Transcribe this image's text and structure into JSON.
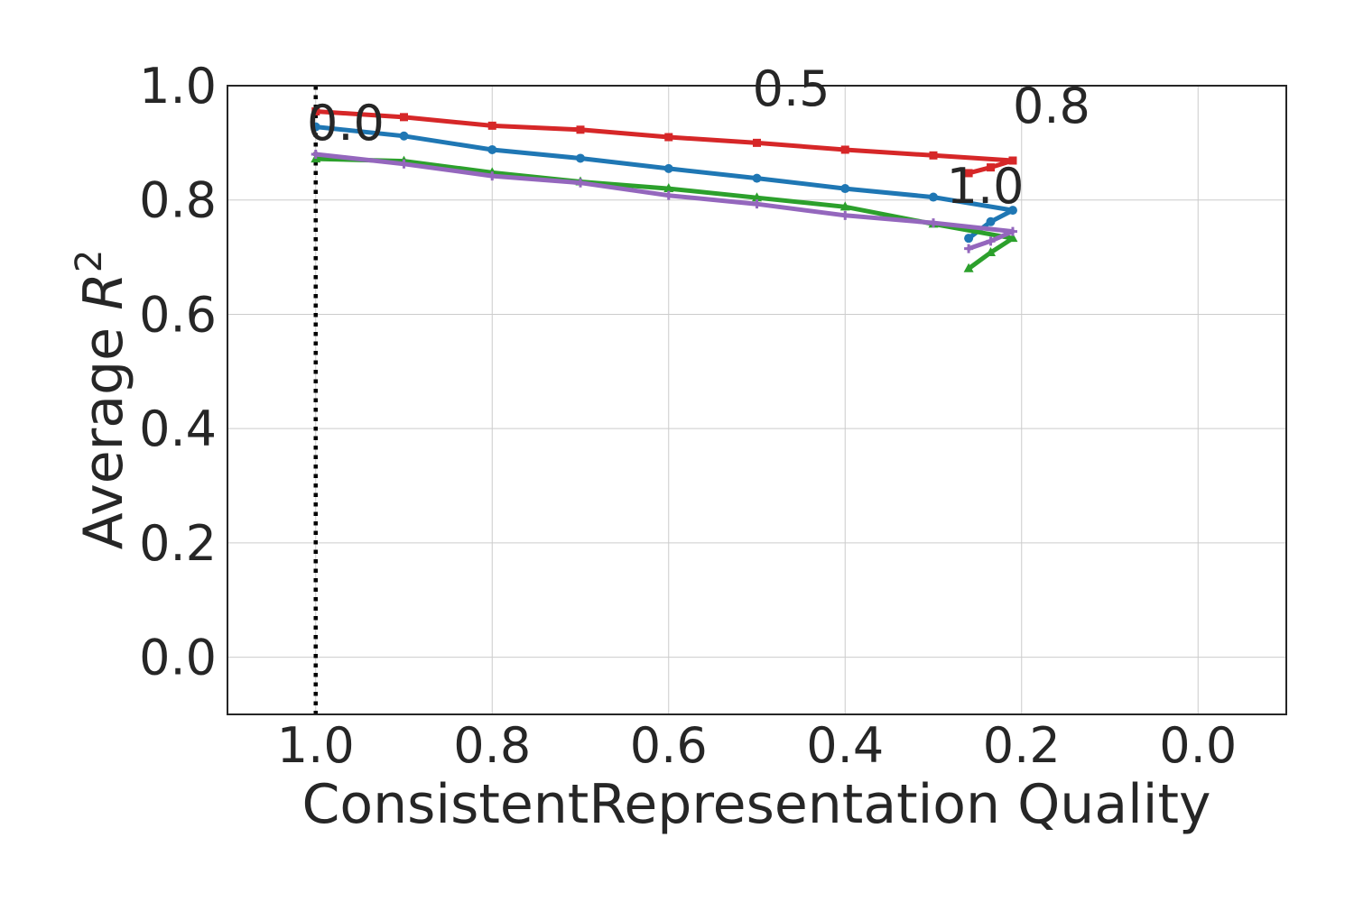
{
  "chart_data": {
    "type": "line",
    "xlabel": "ConsistentRepresentation Quality",
    "ylabel_main": "Average ",
    "ylabel_var": "R",
    "ylabel_sup": "2",
    "xlim": [
      1.1,
      -0.1
    ],
    "ylim": [
      -0.1,
      1.0
    ],
    "x_reversed": true,
    "grid": true,
    "xticks": [
      1.0,
      0.8,
      0.6,
      0.4,
      0.2,
      0.0
    ],
    "xtick_labels": [
      "1.0",
      "0.8",
      "0.6",
      "0.4",
      "0.2",
      "0.0"
    ],
    "yticks": [
      0.0,
      0.2,
      0.4,
      0.6,
      0.8,
      1.0
    ],
    "ytick_labels": [
      "0.0",
      "0.2",
      "0.4",
      "0.6",
      "0.8",
      "1.0"
    ],
    "reference_line": {
      "x": 1.0,
      "style": "dotted",
      "color": "#000000"
    },
    "series": [
      {
        "color": "#d62728",
        "marker": "square",
        "x": [
          1.0,
          0.9,
          0.8,
          0.7,
          0.6,
          0.5,
          0.4,
          0.3,
          0.21,
          0.235,
          0.26
        ],
        "y": [
          0.955,
          0.945,
          0.93,
          0.923,
          0.91,
          0.9,
          0.888,
          0.878,
          0.869,
          0.857,
          0.847
        ]
      },
      {
        "color": "#1f77b4",
        "marker": "circle",
        "x": [
          1.0,
          0.9,
          0.8,
          0.7,
          0.6,
          0.5,
          0.4,
          0.3,
          0.21,
          0.235,
          0.26
        ],
        "y": [
          0.928,
          0.912,
          0.888,
          0.873,
          0.855,
          0.838,
          0.82,
          0.805,
          0.782,
          0.762,
          0.733
        ]
      },
      {
        "color": "#2ca02c",
        "marker": "triangle",
        "x": [
          1.0,
          0.9,
          0.8,
          0.7,
          0.6,
          0.5,
          0.4,
          0.3,
          0.21,
          0.235,
          0.26
        ],
        "y": [
          0.872,
          0.868,
          0.848,
          0.832,
          0.82,
          0.804,
          0.788,
          0.758,
          0.733,
          0.708,
          0.68
        ]
      },
      {
        "color": "#9467bd",
        "marker": "plus",
        "x": [
          1.0,
          0.9,
          0.8,
          0.7,
          0.6,
          0.5,
          0.4,
          0.3,
          0.21,
          0.235,
          0.26
        ],
        "y": [
          0.88,
          0.863,
          0.842,
          0.83,
          0.808,
          0.793,
          0.773,
          0.76,
          0.745,
          0.728,
          0.715
        ]
      }
    ],
    "annotations": [
      {
        "text": "0.0",
        "x": 1.01,
        "y": 0.905
      },
      {
        "text": "0.5",
        "x": 0.505,
        "y": 0.965
      },
      {
        "text": "0.8",
        "x": 0.21,
        "y": 0.935
      },
      {
        "text": "1.0",
        "x": 0.285,
        "y": 0.795
      }
    ]
  }
}
